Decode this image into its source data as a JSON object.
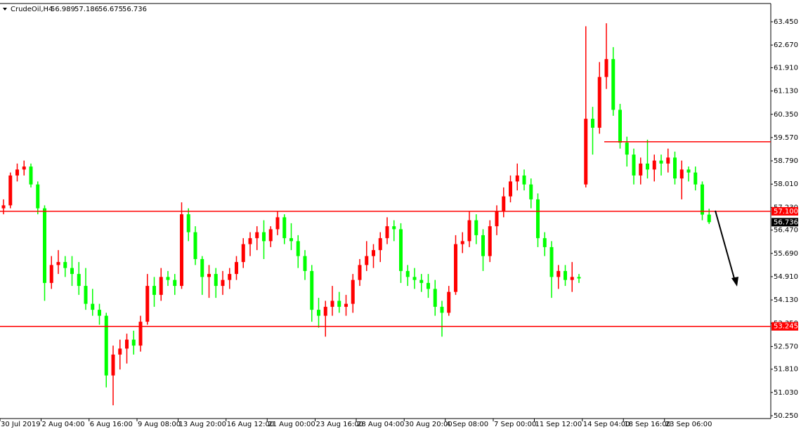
{
  "chart_data": {
    "type": "candlestick",
    "symbol": "CrudeOil,H4",
    "up_color": "#ff0000",
    "down_color": "#00ff00",
    "level_color": "#ff0000",
    "ylim": [
      50.156,
      64.062
    ],
    "yticks": [
      {
        "value": 63.45,
        "label": "63.450"
      },
      {
        "value": 62.67,
        "label": "62.670"
      },
      {
        "value": 61.91,
        "label": "61.910"
      },
      {
        "value": 61.13,
        "label": "61.130"
      },
      {
        "value": 60.35,
        "label": "60.350"
      },
      {
        "value": 59.57,
        "label": "59.570"
      },
      {
        "value": 58.79,
        "label": "58.790"
      },
      {
        "value": 58.01,
        "label": "58.010"
      },
      {
        "value": 57.23,
        "label": "57.230"
      },
      {
        "value": 56.47,
        "label": "56.470"
      },
      {
        "value": 55.69,
        "label": "55.690"
      },
      {
        "value": 54.91,
        "label": "54.910"
      },
      {
        "value": 54.13,
        "label": "54.130"
      },
      {
        "value": 53.35,
        "label": "53.350"
      },
      {
        "value": 52.57,
        "label": "52.570"
      },
      {
        "value": 51.81,
        "label": "51.810"
      },
      {
        "value": 51.03,
        "label": "51.030"
      },
      {
        "value": 50.25,
        "label": "50.250"
      }
    ],
    "levels": [
      {
        "value": 57.1,
        "label": "57.100"
      },
      {
        "value": 53.245,
        "label": "53.245"
      }
    ],
    "resistance": 59.43,
    "current": {
      "value": 56.736,
      "label": "56.736"
    },
    "categories": [
      "30 Jul 2019",
      null,
      null,
      null,
      null,
      null,
      "2 Aug 04:00",
      null,
      null,
      null,
      null,
      null,
      null,
      "6 Aug 16:00",
      null,
      null,
      null,
      null,
      null,
      null,
      "9 Aug 08:00",
      null,
      null,
      null,
      null,
      null,
      "13 Aug 20:00",
      null,
      null,
      null,
      null,
      null,
      null,
      "16 Aug 12:00",
      null,
      null,
      null,
      null,
      null,
      "21 Aug 00:00",
      null,
      null,
      null,
      null,
      null,
      null,
      "23 Aug 16:00",
      null,
      null,
      null,
      null,
      null,
      "28 Aug 04:00",
      null,
      null,
      null,
      null,
      null,
      null,
      "30 Aug 20:00",
      null,
      null,
      null,
      null,
      null,
      "4 Sep 08:00",
      null,
      null,
      null,
      null,
      null,
      null,
      "7 Sep 00:00",
      null,
      null,
      null,
      null,
      null,
      "11 Sep 12:00",
      null,
      null,
      null,
      null,
      null,
      null,
      "14 Sep 04:00",
      null,
      null,
      null,
      null,
      null,
      "18 Sep 16:00",
      null,
      null,
      null,
      null,
      null,
      "23 Sep 06:00",
      null,
      null,
      null,
      null,
      null,
      null
    ],
    "ohlc": [
      [
        57.2,
        57.5,
        57.0,
        57.3
      ],
      [
        57.3,
        58.4,
        57.2,
        58.3
      ],
      [
        58.3,
        58.7,
        58.1,
        58.5
      ],
      [
        58.5,
        58.8,
        58.3,
        58.6
      ],
      [
        58.6,
        58.7,
        57.9,
        58.0
      ],
      [
        58.0,
        58.1,
        57.0,
        57.2
      ],
      [
        57.2,
        57.3,
        54.1,
        54.7
      ],
      [
        54.7,
        55.6,
        54.5,
        55.3
      ],
      [
        55.3,
        55.8,
        55.0,
        55.4
      ],
      [
        55.4,
        55.6,
        54.9,
        55.2
      ],
      [
        55.2,
        55.6,
        54.6,
        55.0
      ],
      [
        55.0,
        55.4,
        54.3,
        54.6
      ],
      [
        54.6,
        55.2,
        53.8,
        54.0
      ],
      [
        54.0,
        54.5,
        53.6,
        53.8
      ],
      [
        53.8,
        54.0,
        53.3,
        53.6
      ],
      [
        53.6,
        53.7,
        51.2,
        51.6
      ],
      [
        51.6,
        52.6,
        50.6,
        52.3
      ],
      [
        52.3,
        52.8,
        51.8,
        52.5
      ],
      [
        52.5,
        53.0,
        52.0,
        52.8
      ],
      [
        52.8,
        53.1,
        52.3,
        52.6
      ],
      [
        52.6,
        53.6,
        52.4,
        53.4
      ],
      [
        53.4,
        55.0,
        53.3,
        54.6
      ],
      [
        54.6,
        54.9,
        53.9,
        54.3
      ],
      [
        54.3,
        55.2,
        54.1,
        54.9
      ],
      [
        54.9,
        55.1,
        54.6,
        54.8
      ],
      [
        54.8,
        55.0,
        54.3,
        54.6
      ],
      [
        54.6,
        57.4,
        54.5,
        57.0
      ],
      [
        57.0,
        57.2,
        56.1,
        56.4
      ],
      [
        56.4,
        56.6,
        55.3,
        55.5
      ],
      [
        55.5,
        55.6,
        54.3,
        54.9
      ],
      [
        54.9,
        55.3,
        54.2,
        55.0
      ],
      [
        55.0,
        55.2,
        54.2,
        54.6
      ],
      [
        54.6,
        55.1,
        54.3,
        54.8
      ],
      [
        54.8,
        55.2,
        54.5,
        55.0
      ],
      [
        55.0,
        55.6,
        54.8,
        55.4
      ],
      [
        55.4,
        56.2,
        55.2,
        56.0
      ],
      [
        56.0,
        56.4,
        55.6,
        56.2
      ],
      [
        56.2,
        56.6,
        55.8,
        56.4
      ],
      [
        56.4,
        56.8,
        55.5,
        56.1
      ],
      [
        56.1,
        56.6,
        55.9,
        56.5
      ],
      [
        56.5,
        57.1,
        56.3,
        56.9
      ],
      [
        56.9,
        57.0,
        56.0,
        56.2
      ],
      [
        56.2,
        56.7,
        55.8,
        56.1
      ],
      [
        56.1,
        56.3,
        55.2,
        55.6
      ],
      [
        55.6,
        55.8,
        54.8,
        55.1
      ],
      [
        55.1,
        55.3,
        53.4,
        53.8
      ],
      [
        53.8,
        54.2,
        53.2,
        53.6
      ],
      [
        53.6,
        54.1,
        52.9,
        53.9
      ],
      [
        53.9,
        54.6,
        53.6,
        54.1
      ],
      [
        54.1,
        54.4,
        53.7,
        53.9
      ],
      [
        53.9,
        54.3,
        53.6,
        54.0
      ],
      [
        54.0,
        55.0,
        53.7,
        54.8
      ],
      [
        54.8,
        55.5,
        54.6,
        55.3
      ],
      [
        55.3,
        56.1,
        55.1,
        55.6
      ],
      [
        55.6,
        56.0,
        55.2,
        55.8
      ],
      [
        55.8,
        56.4,
        55.4,
        56.2
      ],
      [
        56.2,
        56.9,
        56.0,
        56.6
      ],
      [
        56.6,
        56.8,
        56.1,
        56.5
      ],
      [
        56.5,
        56.7,
        54.7,
        55.1
      ],
      [
        55.1,
        55.3,
        54.6,
        54.9
      ],
      [
        54.9,
        55.2,
        54.5,
        54.8
      ],
      [
        54.8,
        55.0,
        54.4,
        54.7
      ],
      [
        54.7,
        55.0,
        54.2,
        54.5
      ],
      [
        54.5,
        54.8,
        53.6,
        53.9
      ],
      [
        53.9,
        54.1,
        52.9,
        53.7
      ],
      [
        53.7,
        54.6,
        53.6,
        54.4
      ],
      [
        54.4,
        56.3,
        54.3,
        56.0
      ],
      [
        56.0,
        56.4,
        55.7,
        56.1
      ],
      [
        56.1,
        57.1,
        55.9,
        56.8
      ],
      [
        56.8,
        57.0,
        56.0,
        56.3
      ],
      [
        56.3,
        56.5,
        55.1,
        55.6
      ],
      [
        55.6,
        56.8,
        55.4,
        56.6
      ],
      [
        56.6,
        57.3,
        56.3,
        57.1
      ],
      [
        57.1,
        57.9,
        56.9,
        57.6
      ],
      [
        57.6,
        58.3,
        57.4,
        58.1
      ],
      [
        58.1,
        58.7,
        57.8,
        58.3
      ],
      [
        58.3,
        58.5,
        57.8,
        58.0
      ],
      [
        58.0,
        58.2,
        57.2,
        57.5
      ],
      [
        57.5,
        57.7,
        55.9,
        56.2
      ],
      [
        56.2,
        56.4,
        55.6,
        55.9
      ],
      [
        55.9,
        56.1,
        54.2,
        54.9
      ],
      [
        54.9,
        55.3,
        54.5,
        55.1
      ],
      [
        55.1,
        55.3,
        54.6,
        54.8
      ],
      [
        54.8,
        55.4,
        54.4,
        54.9
      ],
      [
        54.9,
        55.0,
        54.7,
        54.85
      ],
      [
        58.0,
        63.3,
        57.9,
        60.2
      ],
      [
        60.2,
        60.6,
        59.0,
        59.9
      ],
      [
        59.9,
        62.1,
        59.7,
        61.6
      ],
      [
        61.6,
        63.4,
        61.2,
        62.2
      ],
      [
        62.2,
        62.6,
        60.3,
        60.5
      ],
      [
        60.5,
        60.7,
        59.2,
        59.4
      ],
      [
        59.4,
        59.6,
        58.6,
        59.0
      ],
      [
        59.0,
        59.2,
        58.0,
        58.3
      ],
      [
        58.3,
        58.9,
        58.0,
        58.7
      ],
      [
        58.7,
        59.5,
        58.2,
        58.5
      ],
      [
        58.5,
        59.0,
        58.1,
        58.8
      ],
      [
        58.8,
        59.0,
        58.3,
        58.7
      ],
      [
        58.7,
        59.2,
        58.4,
        58.9
      ],
      [
        58.9,
        59.1,
        58.0,
        58.2
      ],
      [
        58.2,
        58.8,
        57.5,
        58.5
      ],
      [
        58.5,
        58.6,
        58.1,
        58.4
      ],
      [
        58.4,
        58.6,
        57.8,
        58.0
      ],
      [
        58.0,
        58.1,
        56.8,
        56.989
      ],
      [
        56.989,
        57.186,
        56.675,
        56.736
      ]
    ]
  }
}
